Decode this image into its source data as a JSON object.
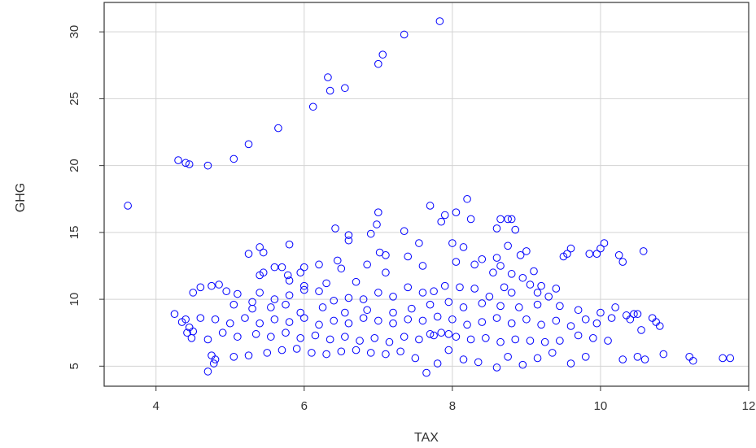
{
  "chart_data": {
    "type": "scatter",
    "title": "",
    "xlabel": "TAX",
    "ylabel": "GHG",
    "xlim": [
      3.3,
      12.0
    ],
    "ylim": [
      3.5,
      32.2
    ],
    "x_ticks": [
      4,
      6,
      8,
      10,
      12
    ],
    "y_ticks": [
      5,
      10,
      15,
      20,
      25,
      30
    ],
    "grid": true,
    "marker": "open-circle",
    "point_color": "#0000ff",
    "grid_color": "#d3d3d3",
    "frame_color": "#333333",
    "points": [
      [
        3.62,
        17.0
      ],
      [
        4.3,
        20.4
      ],
      [
        4.4,
        20.2
      ],
      [
        4.45,
        20.1
      ],
      [
        4.7,
        20.0
      ],
      [
        5.05,
        20.5
      ],
      [
        5.25,
        21.6
      ],
      [
        5.65,
        22.8
      ],
      [
        6.12,
        24.4
      ],
      [
        6.32,
        26.6
      ],
      [
        6.35,
        25.6
      ],
      [
        6.55,
        25.8
      ],
      [
        7.0,
        27.6
      ],
      [
        7.06,
        28.3
      ],
      [
        7.35,
        29.8
      ],
      [
        7.83,
        30.8
      ],
      [
        7.7,
        17.0
      ],
      [
        8.2,
        17.5
      ],
      [
        7.0,
        16.5
      ],
      [
        7.9,
        16.3
      ],
      [
        8.05,
        16.5
      ],
      [
        8.65,
        16.0
      ],
      [
        8.75,
        16.0
      ],
      [
        8.8,
        16.0
      ],
      [
        7.85,
        15.8
      ],
      [
        8.25,
        16.0
      ],
      [
        6.98,
        15.6
      ],
      [
        6.42,
        15.3
      ],
      [
        7.35,
        15.1
      ],
      [
        6.9,
        14.9
      ],
      [
        6.6,
        14.8
      ],
      [
        8.6,
        15.3
      ],
      [
        8.85,
        15.2
      ],
      [
        5.8,
        14.1
      ],
      [
        5.4,
        13.9
      ],
      [
        6.6,
        14.4
      ],
      [
        7.55,
        14.2
      ],
      [
        8.0,
        14.2
      ],
      [
        8.15,
        13.9
      ],
      [
        8.75,
        14.0
      ],
      [
        10.05,
        14.2
      ],
      [
        10.0,
        13.8
      ],
      [
        10.58,
        13.6
      ],
      [
        9.55,
        13.4
      ],
      [
        9.6,
        13.8
      ],
      [
        9.5,
        13.2
      ],
      [
        9.85,
        13.4
      ],
      [
        9.95,
        13.4
      ],
      [
        10.25,
        13.3
      ],
      [
        10.3,
        12.8
      ],
      [
        9.0,
        13.6
      ],
      [
        8.92,
        13.3
      ],
      [
        8.6,
        13.1
      ],
      [
        8.65,
        12.5
      ],
      [
        8.4,
        13.0
      ],
      [
        7.4,
        13.2
      ],
      [
        7.1,
        13.3
      ],
      [
        7.02,
        13.5
      ],
      [
        6.85,
        12.6
      ],
      [
        6.45,
        12.9
      ],
      [
        6.5,
        12.3
      ],
      [
        6.2,
        12.6
      ],
      [
        6.0,
        12.4
      ],
      [
        5.95,
        12.0
      ],
      [
        5.7,
        12.4
      ],
      [
        5.78,
        11.8
      ],
      [
        5.6,
        12.4
      ],
      [
        5.4,
        11.8
      ],
      [
        5.25,
        13.4
      ],
      [
        5.45,
        13.5
      ],
      [
        5.45,
        12.0
      ],
      [
        5.8,
        11.4
      ],
      [
        6.0,
        11.0
      ],
      [
        6.3,
        11.2
      ],
      [
        6.7,
        11.3
      ],
      [
        7.1,
        12.0
      ],
      [
        7.6,
        12.5
      ],
      [
        8.05,
        12.8
      ],
      [
        8.3,
        12.6
      ],
      [
        8.55,
        12.0
      ],
      [
        8.8,
        11.9
      ],
      [
        8.95,
        11.6
      ],
      [
        9.1,
        12.1
      ],
      [
        9.05,
        11.1
      ],
      [
        9.2,
        11.0
      ],
      [
        9.4,
        10.8
      ],
      [
        9.15,
        10.5
      ],
      [
        9.3,
        10.2
      ],
      [
        8.8,
        10.5
      ],
      [
        8.7,
        10.9
      ],
      [
        8.5,
        10.2
      ],
      [
        8.3,
        10.8
      ],
      [
        8.1,
        10.9
      ],
      [
        7.9,
        11.0
      ],
      [
        7.75,
        10.6
      ],
      [
        7.6,
        10.5
      ],
      [
        7.4,
        10.9
      ],
      [
        7.2,
        10.2
      ],
      [
        7.0,
        10.5
      ],
      [
        6.8,
        10.0
      ],
      [
        6.6,
        10.1
      ],
      [
        6.4,
        9.9
      ],
      [
        6.2,
        10.6
      ],
      [
        6.0,
        10.7
      ],
      [
        5.8,
        10.3
      ],
      [
        5.6,
        10.0
      ],
      [
        5.4,
        10.5
      ],
      [
        5.3,
        9.8
      ],
      [
        5.1,
        10.4
      ],
      [
        4.95,
        10.6
      ],
      [
        4.75,
        11.0
      ],
      [
        4.6,
        10.9
      ],
      [
        4.5,
        10.5
      ],
      [
        4.85,
        11.1
      ],
      [
        5.05,
        9.6
      ],
      [
        5.3,
        9.3
      ],
      [
        5.55,
        9.4
      ],
      [
        5.75,
        9.6
      ],
      [
        5.95,
        9.0
      ],
      [
        6.25,
        9.4
      ],
      [
        6.55,
        9.0
      ],
      [
        6.85,
        9.2
      ],
      [
        7.2,
        9.0
      ],
      [
        7.45,
        9.3
      ],
      [
        7.7,
        9.6
      ],
      [
        7.95,
        9.8
      ],
      [
        8.15,
        9.4
      ],
      [
        8.4,
        9.7
      ],
      [
        8.65,
        9.5
      ],
      [
        8.9,
        9.4
      ],
      [
        9.15,
        9.6
      ],
      [
        9.45,
        9.5
      ],
      [
        9.7,
        9.2
      ],
      [
        10.0,
        9.0
      ],
      [
        10.2,
        9.4
      ],
      [
        10.35,
        8.8
      ],
      [
        10.45,
        8.9
      ],
      [
        10.5,
        8.9
      ],
      [
        10.4,
        8.5
      ],
      [
        10.15,
        8.6
      ],
      [
        9.95,
        8.2
      ],
      [
        9.8,
        8.5
      ],
      [
        9.6,
        8.0
      ],
      [
        9.4,
        8.4
      ],
      [
        9.2,
        8.1
      ],
      [
        9.0,
        8.5
      ],
      [
        8.8,
        8.2
      ],
      [
        8.6,
        8.6
      ],
      [
        8.4,
        8.3
      ],
      [
        8.2,
        8.1
      ],
      [
        8.0,
        8.5
      ],
      [
        7.8,
        8.7
      ],
      [
        7.6,
        8.4
      ],
      [
        7.4,
        8.5
      ],
      [
        7.2,
        8.2
      ],
      [
        7.0,
        8.4
      ],
      [
        6.8,
        8.6
      ],
      [
        6.6,
        8.2
      ],
      [
        6.4,
        8.4
      ],
      [
        6.2,
        8.1
      ],
      [
        6.0,
        8.6
      ],
      [
        5.8,
        8.3
      ],
      [
        5.6,
        8.5
      ],
      [
        5.4,
        8.2
      ],
      [
        5.2,
        8.6
      ],
      [
        5.0,
        8.2
      ],
      [
        4.8,
        8.5
      ],
      [
        4.6,
        8.6
      ],
      [
        4.4,
        8.5
      ],
      [
        4.25,
        8.9
      ],
      [
        4.35,
        8.3
      ],
      [
        4.45,
        7.9
      ],
      [
        4.5,
        7.6
      ],
      [
        4.42,
        7.5
      ],
      [
        4.48,
        7.1
      ],
      [
        4.7,
        7.0
      ],
      [
        4.9,
        7.5
      ],
      [
        5.1,
        7.2
      ],
      [
        5.35,
        7.4
      ],
      [
        5.55,
        7.2
      ],
      [
        5.75,
        7.5
      ],
      [
        5.95,
        7.1
      ],
      [
        6.15,
        7.3
      ],
      [
        6.35,
        7.0
      ],
      [
        6.55,
        7.2
      ],
      [
        6.75,
        6.9
      ],
      [
        6.95,
        7.1
      ],
      [
        7.15,
        6.8
      ],
      [
        7.35,
        7.2
      ],
      [
        7.55,
        7.0
      ],
      [
        7.75,
        7.3
      ],
      [
        7.85,
        7.5
      ],
      [
        7.95,
        7.4
      ],
      [
        8.05,
        7.2
      ],
      [
        7.7,
        7.4
      ],
      [
        8.25,
        7.0
      ],
      [
        8.45,
        7.1
      ],
      [
        8.65,
        6.8
      ],
      [
        8.85,
        7.0
      ],
      [
        9.05,
        6.9
      ],
      [
        9.25,
        6.8
      ],
      [
        9.45,
        6.9
      ],
      [
        9.7,
        7.3
      ],
      [
        9.9,
        7.1
      ],
      [
        10.1,
        6.9
      ],
      [
        10.7,
        8.6
      ],
      [
        10.75,
        8.3
      ],
      [
        10.8,
        8.0
      ],
      [
        10.55,
        7.7
      ],
      [
        4.75,
        5.8
      ],
      [
        4.8,
        5.5
      ],
      [
        4.7,
        4.6
      ],
      [
        4.78,
        5.2
      ],
      [
        5.05,
        5.7
      ],
      [
        5.25,
        5.8
      ],
      [
        5.5,
        6.0
      ],
      [
        5.7,
        6.2
      ],
      [
        5.9,
        6.3
      ],
      [
        6.1,
        6.0
      ],
      [
        6.3,
        5.9
      ],
      [
        6.5,
        6.1
      ],
      [
        6.7,
        6.2
      ],
      [
        6.9,
        6.0
      ],
      [
        7.1,
        5.9
      ],
      [
        7.3,
        6.1
      ],
      [
        7.5,
        5.6
      ],
      [
        7.65,
        4.5
      ],
      [
        7.8,
        5.2
      ],
      [
        7.95,
        6.2
      ],
      [
        8.15,
        5.5
      ],
      [
        8.35,
        5.3
      ],
      [
        8.6,
        4.9
      ],
      [
        8.75,
        5.7
      ],
      [
        8.95,
        5.1
      ],
      [
        9.15,
        5.6
      ],
      [
        9.35,
        6.0
      ],
      [
        9.6,
        5.2
      ],
      [
        9.8,
        5.7
      ],
      [
        10.3,
        5.5
      ],
      [
        10.5,
        5.7
      ],
      [
        10.6,
        5.5
      ],
      [
        10.85,
        5.9
      ],
      [
        11.2,
        5.7
      ],
      [
        11.25,
        5.4
      ],
      [
        11.65,
        5.6
      ],
      [
        11.75,
        5.6
      ]
    ]
  }
}
